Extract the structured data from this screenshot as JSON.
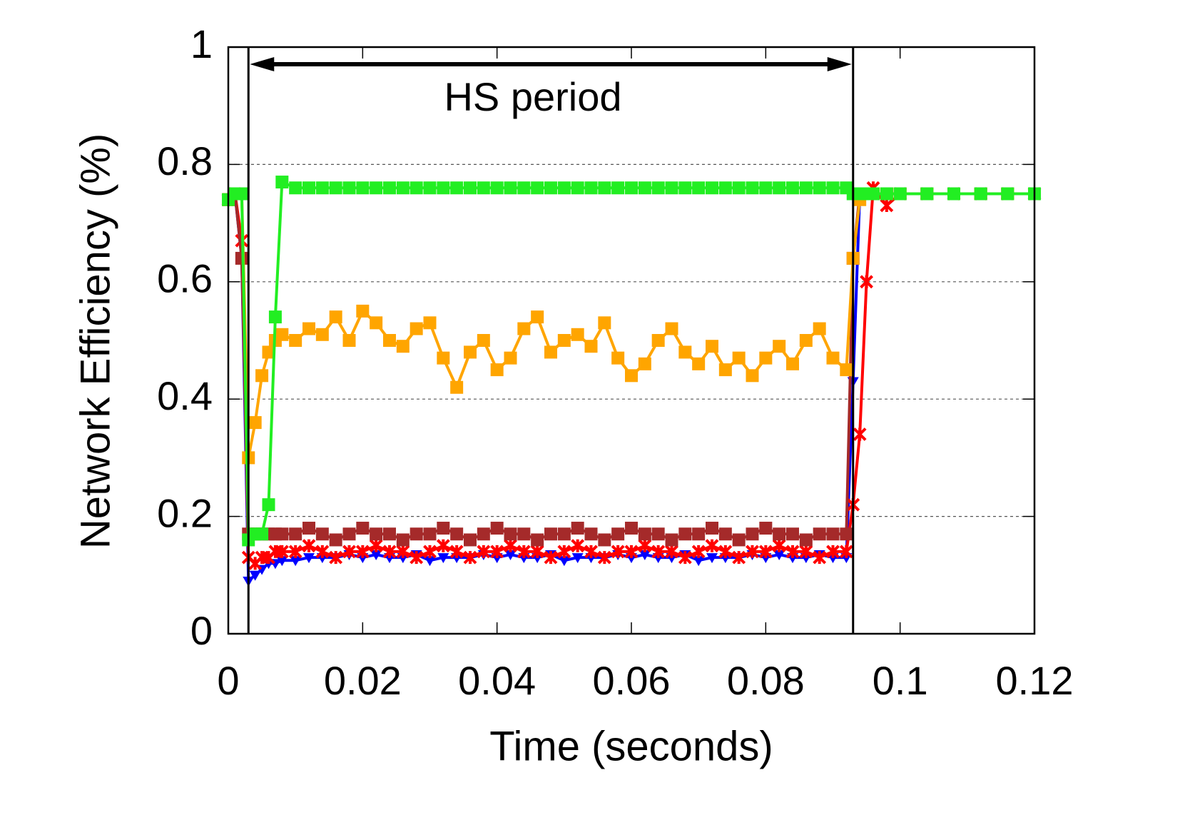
{
  "chart_data": {
    "type": "line",
    "xlabel": "Time (seconds)",
    "ylabel": "Network Efficiency (%)",
    "annotation": "HS period",
    "vlines": [
      0.003,
      0.093
    ],
    "xlim": [
      0,
      0.12
    ],
    "xticks": [
      0,
      0.02,
      0.04,
      0.06,
      0.08,
      0.1,
      0.12
    ],
    "ylim": [
      0,
      1
    ],
    "yticks": [
      0,
      0.2,
      0.4,
      0.6,
      0.8,
      1
    ],
    "grid": true,
    "x": [
      0,
      0.001,
      0.002,
      0.003,
      0.004,
      0.005,
      0.006,
      0.007,
      0.008,
      0.01,
      0.012,
      0.014,
      0.016,
      0.018,
      0.02,
      0.022,
      0.024,
      0.026,
      0.028,
      0.03,
      0.032,
      0.034,
      0.036,
      0.038,
      0.04,
      0.042,
      0.044,
      0.046,
      0.048,
      0.05,
      0.052,
      0.054,
      0.056,
      0.058,
      0.06,
      0.062,
      0.064,
      0.066,
      0.068,
      0.07,
      0.072,
      0.074,
      0.076,
      0.078,
      0.08,
      0.082,
      0.084,
      0.086,
      0.088,
      0.09,
      0.092,
      0.093,
      0.094,
      0.095,
      0.096,
      0.098,
      0.1,
      0.104,
      0.108,
      0.112,
      0.116,
      0.12
    ],
    "series": [
      {
        "color": "#0000ff",
        "marker": "triangle",
        "values": [
          0.74,
          0.75,
          0.64,
          0.09,
          0.1,
          0.11,
          0.12,
          0.12,
          0.125,
          0.125,
          0.13,
          0.13,
          0.13,
          0.135,
          0.13,
          0.135,
          0.13,
          0.13,
          0.135,
          0.125,
          0.13,
          0.13,
          0.13,
          0.135,
          0.13,
          0.135,
          0.13,
          0.13,
          0.135,
          0.125,
          0.13,
          0.13,
          0.13,
          0.135,
          0.13,
          0.135,
          0.13,
          0.13,
          0.135,
          0.125,
          0.13,
          0.13,
          0.13,
          0.135,
          0.13,
          0.135,
          0.13,
          0.13,
          0.135,
          0.13,
          0.13,
          0.43,
          0.75,
          0.75,
          0.75,
          0.75,
          0.75,
          0.75,
          0.75,
          0.75,
          0.75,
          0.75
        ]
      },
      {
        "color": "#ff0000",
        "marker": "star",
        "values": [
          0.74,
          0.75,
          0.67,
          0.13,
          0.12,
          0.13,
          0.13,
          0.14,
          0.14,
          0.14,
          0.15,
          0.14,
          0.13,
          0.14,
          0.14,
          0.15,
          0.14,
          0.14,
          0.13,
          0.14,
          0.15,
          0.14,
          0.13,
          0.14,
          0.14,
          0.15,
          0.14,
          0.14,
          0.13,
          0.14,
          0.15,
          0.14,
          0.13,
          0.14,
          0.14,
          0.15,
          0.14,
          0.14,
          0.13,
          0.14,
          0.15,
          0.14,
          0.13,
          0.14,
          0.14,
          0.15,
          0.14,
          0.14,
          0.13,
          0.14,
          0.14,
          0.22,
          0.34,
          0.6,
          0.76,
          0.73,
          0.75,
          0.75,
          0.75,
          0.75,
          0.75,
          0.75
        ]
      },
      {
        "color": "#a52a2a",
        "marker": "square",
        "values": [
          0.74,
          0.75,
          0.64,
          0.17,
          0.17,
          0.17,
          0.17,
          0.17,
          0.17,
          0.17,
          0.18,
          0.17,
          0.16,
          0.17,
          0.18,
          0.17,
          0.17,
          0.16,
          0.17,
          0.17,
          0.18,
          0.17,
          0.16,
          0.17,
          0.18,
          0.17,
          0.17,
          0.16,
          0.17,
          0.17,
          0.18,
          0.17,
          0.16,
          0.17,
          0.18,
          0.17,
          0.17,
          0.16,
          0.17,
          0.17,
          0.18,
          0.17,
          0.16,
          0.17,
          0.18,
          0.17,
          0.17,
          0.16,
          0.17,
          0.17,
          0.17,
          0.64,
          0.75,
          0.75,
          0.75,
          0.75,
          0.75,
          0.75,
          0.75,
          0.75,
          0.75,
          0.75
        ]
      },
      {
        "color": "#ffa500",
        "marker": "square",
        "values": [
          0.74,
          0.75,
          0.75,
          0.3,
          0.36,
          0.44,
          0.48,
          0.5,
          0.51,
          0.5,
          0.52,
          0.51,
          0.54,
          0.5,
          0.55,
          0.53,
          0.5,
          0.49,
          0.52,
          0.53,
          0.47,
          0.42,
          0.48,
          0.5,
          0.45,
          0.47,
          0.52,
          0.54,
          0.48,
          0.5,
          0.51,
          0.49,
          0.53,
          0.47,
          0.44,
          0.46,
          0.5,
          0.52,
          0.48,
          0.46,
          0.49,
          0.45,
          0.47,
          0.44,
          0.47,
          0.49,
          0.46,
          0.5,
          0.52,
          0.47,
          0.45,
          0.64,
          0.74,
          0.75,
          0.75,
          0.75,
          0.75,
          0.75,
          0.75,
          0.75,
          0.75,
          0.75
        ]
      },
      {
        "color": "#22ee22",
        "marker": "square",
        "values": [
          0.74,
          0.75,
          0.75,
          0.16,
          0.17,
          0.17,
          0.22,
          0.54,
          0.77,
          0.76,
          0.76,
          0.76,
          0.76,
          0.76,
          0.76,
          0.76,
          0.76,
          0.76,
          0.76,
          0.76,
          0.76,
          0.76,
          0.76,
          0.76,
          0.76,
          0.76,
          0.76,
          0.76,
          0.76,
          0.76,
          0.76,
          0.76,
          0.76,
          0.76,
          0.76,
          0.76,
          0.76,
          0.76,
          0.76,
          0.76,
          0.76,
          0.76,
          0.76,
          0.76,
          0.76,
          0.76,
          0.76,
          0.76,
          0.76,
          0.76,
          0.76,
          0.75,
          0.75,
          0.75,
          0.75,
          0.75,
          0.75,
          0.75,
          0.75,
          0.75,
          0.75,
          0.75
        ]
      }
    ]
  }
}
